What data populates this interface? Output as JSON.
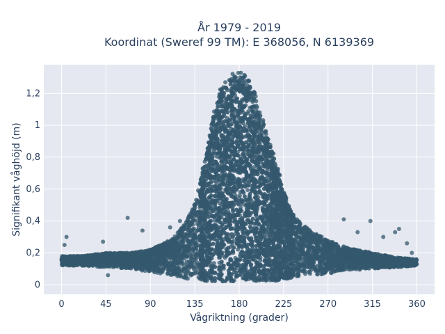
{
  "chart_data": {
    "type": "scatter",
    "title_line1": "År 1979 - 2019",
    "title_line2": "Koordinat (Sweref 99 TM): E 368056, N 6139369",
    "xlabel": "Vågriktning (grader)",
    "ylabel": "Signifikant våghöjd (m)",
    "xlim": [
      -18,
      378
    ],
    "ylim": [
      -0.06,
      1.38
    ],
    "xticks": [
      0,
      45,
      90,
      135,
      180,
      225,
      270,
      315,
      360
    ],
    "xtick_labels": [
      "0",
      "45",
      "90",
      "135",
      "180",
      "225",
      "270",
      "315",
      "360"
    ],
    "yticks": [
      0,
      0.2,
      0.4,
      0.6,
      0.8,
      1,
      1.2
    ],
    "ytick_labels": [
      "0",
      "0,2",
      "0,4",
      "0,6",
      "0,8",
      "1",
      "1,2"
    ],
    "grid": true,
    "marker_color": "#34586e",
    "plot_background": "#e5e8f0",
    "dense_envelope": {
      "x": [
        0,
        20,
        45,
        70,
        90,
        110,
        125,
        135,
        145,
        150,
        155,
        160,
        165,
        170,
        175,
        180,
        185,
        190,
        195,
        200,
        205,
        210,
        215,
        220,
        225,
        230,
        240,
        255,
        270,
        290,
        315,
        340,
        360
      ],
      "y_max": [
        0.18,
        0.18,
        0.2,
        0.2,
        0.22,
        0.28,
        0.38,
        0.52,
        0.78,
        0.95,
        1.12,
        1.22,
        1.27,
        1.31,
        1.33,
        1.34,
        1.32,
        1.28,
        1.22,
        1.13,
        1.02,
        0.92,
        0.82,
        0.72,
        0.6,
        0.5,
        0.4,
        0.33,
        0.28,
        0.23,
        0.2,
        0.17,
        0.16
      ],
      "y_min": [
        0.12,
        0.12,
        0.11,
        0.1,
        0.08,
        0.06,
        0.04,
        0.03,
        0.02,
        0.02,
        0.02,
        0.02,
        0.02,
        0.02,
        0.02,
        0.02,
        0.02,
        0.02,
        0.02,
        0.02,
        0.02,
        0.02,
        0.02,
        0.03,
        0.03,
        0.04,
        0.05,
        0.06,
        0.07,
        0.09,
        0.1,
        0.11,
        0.12
      ]
    },
    "outliers": [
      {
        "x": 3,
        "y": 0.25
      },
      {
        "x": 5,
        "y": 0.3
      },
      {
        "x": 42,
        "y": 0.27
      },
      {
        "x": 47,
        "y": 0.06
      },
      {
        "x": 67,
        "y": 0.42
      },
      {
        "x": 82,
        "y": 0.34
      },
      {
        "x": 110,
        "y": 0.36
      },
      {
        "x": 120,
        "y": 0.4
      },
      {
        "x": 286,
        "y": 0.41
      },
      {
        "x": 300,
        "y": 0.33
      },
      {
        "x": 313,
        "y": 0.4
      },
      {
        "x": 326,
        "y": 0.3
      },
      {
        "x": 338,
        "y": 0.33
      },
      {
        "x": 342,
        "y": 0.35
      },
      {
        "x": 350,
        "y": 0.26
      },
      {
        "x": 355,
        "y": 0.2
      }
    ]
  }
}
